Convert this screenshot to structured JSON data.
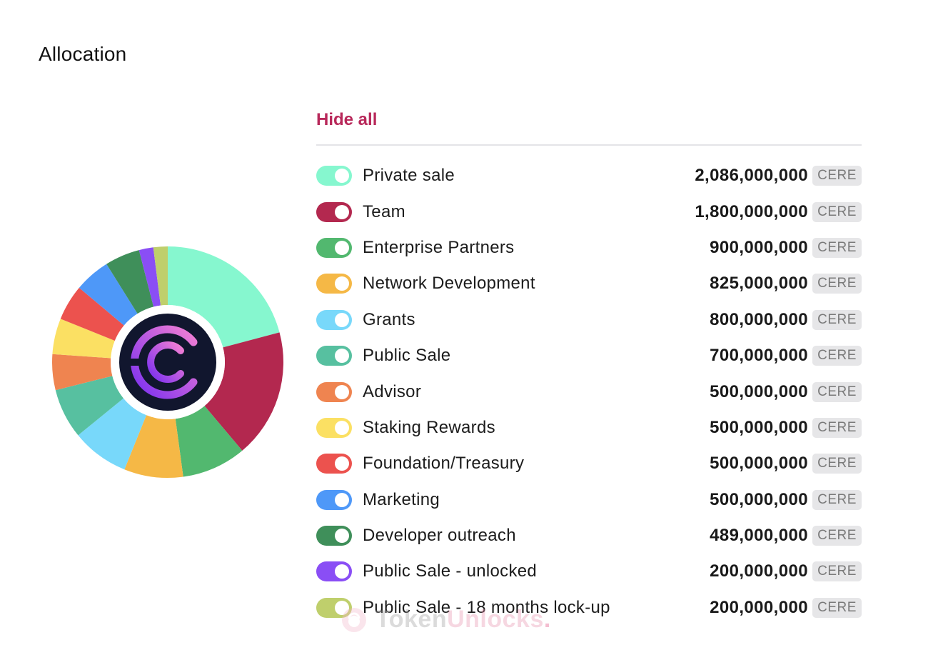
{
  "header": {
    "title": "Allocation"
  },
  "legend": {
    "hide_all_label": "Hide all",
    "unit": "CERE"
  },
  "watermark": {
    "text_part1": "Token",
    "text_part2": "Unlocks",
    "text_dot": "."
  },
  "logo": {
    "center_icon": "cere-network-logo"
  },
  "chart_data": {
    "type": "pie",
    "donut": true,
    "unit": "CERE",
    "categories": [
      "Private sale",
      "Team",
      "Enterprise Partners",
      "Network Development",
      "Grants",
      "Public Sale",
      "Advisor",
      "Staking Rewards",
      "Foundation/Treasury",
      "Marketing",
      "Developer outreach",
      "Public Sale - unlocked",
      "Public Sale - 18 months lock-up"
    ],
    "values": [
      2086000000,
      1800000000,
      900000000,
      825000000,
      800000000,
      700000000,
      500000000,
      500000000,
      500000000,
      500000000,
      489000000,
      200000000,
      200000000
    ],
    "formatted_values": [
      "2,086,000,000",
      "1,800,000,000",
      "900,000,000",
      "825,000,000",
      "800,000,000",
      "700,000,000",
      "500,000,000",
      "500,000,000",
      "500,000,000",
      "500,000,000",
      "489,000,000",
      "200,000,000",
      "200,000,000"
    ],
    "colors": [
      "#86f7cf",
      "#b3284f",
      "#52b86f",
      "#f5b846",
      "#78d8fa",
      "#57c0a0",
      "#ef8450",
      "#fbe063",
      "#ec524e",
      "#4e98f8",
      "#3f8f5a",
      "#8a4ef5",
      "#bfcf6c"
    ],
    "legend_position": "right"
  }
}
